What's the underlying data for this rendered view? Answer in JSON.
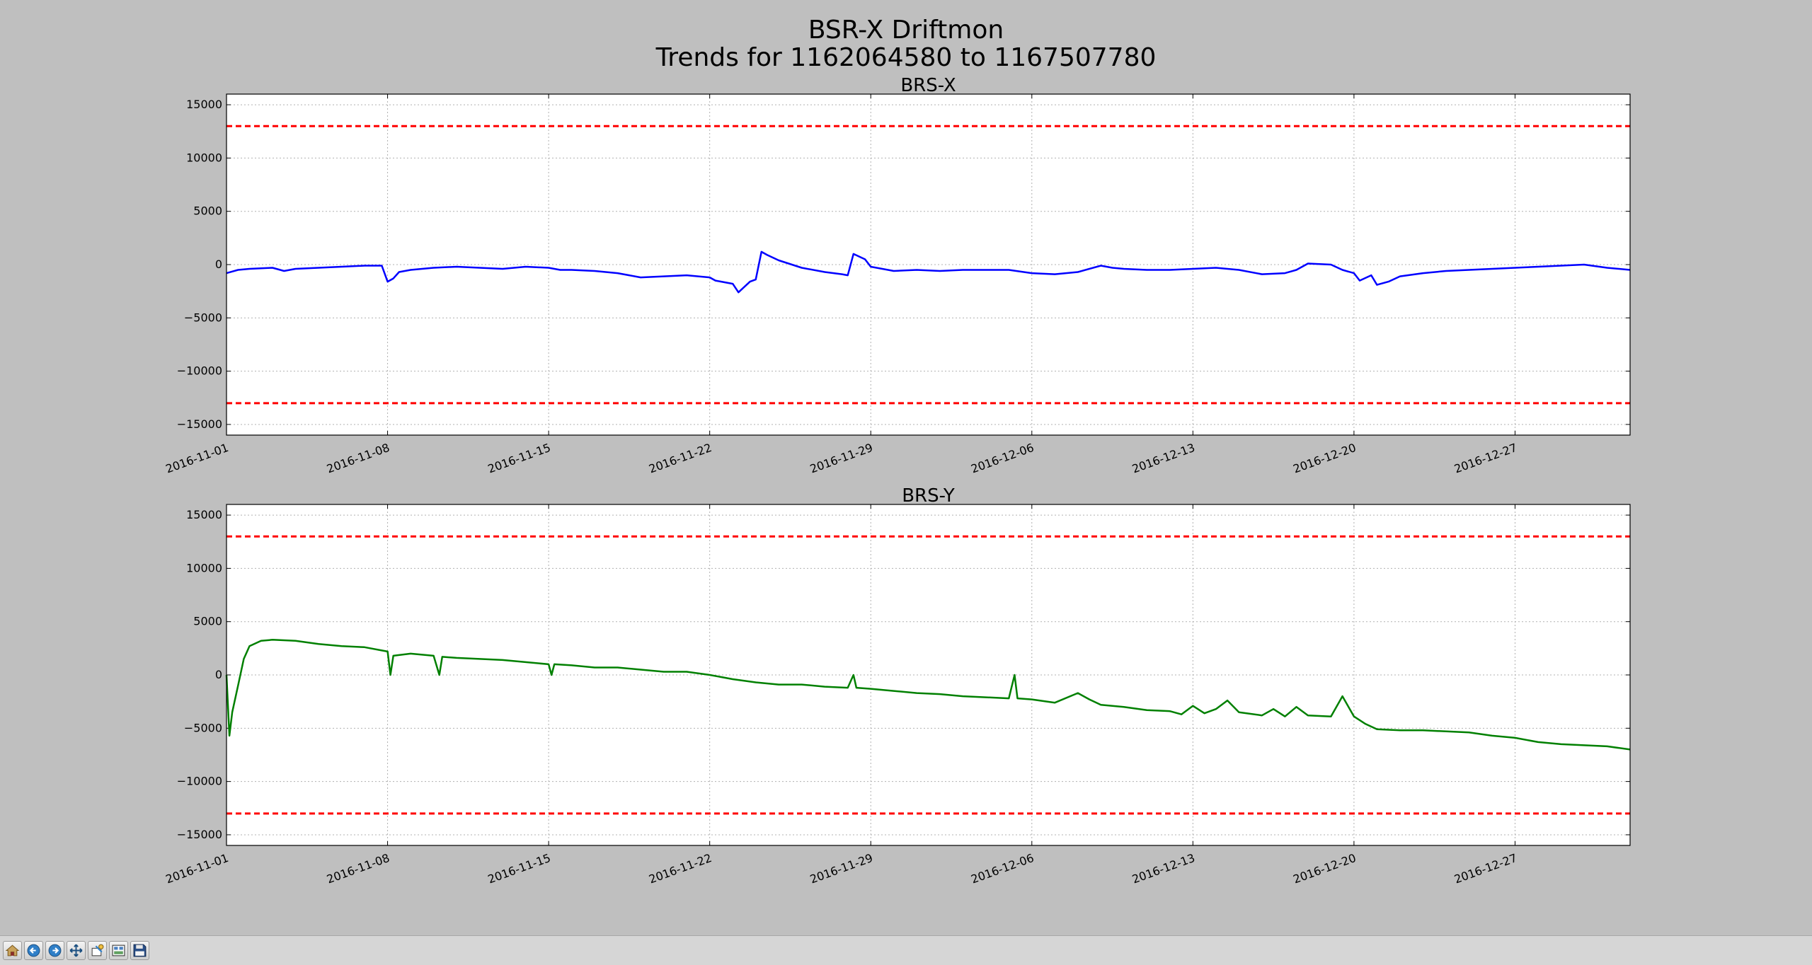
{
  "figure": {
    "title_line1": "BSR-X Driftmon",
    "title_line2": "Trends for 1162064580 to 1167507780"
  },
  "colors": {
    "background": "#bfbfbf",
    "threshold": "#ff0000",
    "brs_x": "#0000ff",
    "brs_y": "#008000",
    "grid": "#b0b0b0"
  },
  "toolbar": {
    "buttons": [
      {
        "name": "home-button",
        "icon": "home-icon"
      },
      {
        "name": "back-button",
        "icon": "arrow-left-icon"
      },
      {
        "name": "forward-button",
        "icon": "arrow-right-icon"
      },
      {
        "name": "pan-button",
        "icon": "move-icon"
      },
      {
        "name": "zoom-button",
        "icon": "zoom-icon"
      },
      {
        "name": "configure-subplots-button",
        "icon": "subplots-icon"
      },
      {
        "name": "save-button",
        "icon": "floppy-disk-icon"
      }
    ]
  },
  "chart_data": [
    {
      "type": "line",
      "title": "BRS-X",
      "xlabel": "",
      "ylabel": "",
      "x_range": [
        "2016-11-01",
        "2017-01-01"
      ],
      "ylim": [
        -16000,
        16000
      ],
      "x_ticks": [
        "2016-11-01",
        "2016-11-08",
        "2016-11-15",
        "2016-11-22",
        "2016-11-29",
        "2016-12-06",
        "2016-12-13",
        "2016-12-20",
        "2016-12-27"
      ],
      "y_ticks": [
        15000,
        10000,
        5000,
        0,
        -5000,
        -10000,
        -15000
      ],
      "y_tick_labels": [
        "15000",
        "10000",
        "5000",
        "0",
        "−5000",
        "−10000",
        "−15000"
      ],
      "grid": true,
      "thresholds": [
        13000,
        -13000
      ],
      "series": [
        {
          "color": "#0000ff",
          "points": [
            [
              "2016-11-01",
              -800
            ],
            [
              "2016-11-01T12:00",
              -500
            ],
            [
              "2016-11-02",
              -400
            ],
            [
              "2016-11-03",
              -300
            ],
            [
              "2016-11-03T12:00",
              -600
            ],
            [
              "2016-11-04",
              -400
            ],
            [
              "2016-11-05",
              -300
            ],
            [
              "2016-11-06",
              -200
            ],
            [
              "2016-11-07",
              -100
            ],
            [
              "2016-11-07T18:00",
              -100
            ],
            [
              "2016-11-08",
              -1600
            ],
            [
              "2016-11-08T06:00",
              -1300
            ],
            [
              "2016-11-08T12:00",
              -700
            ],
            [
              "2016-11-09",
              -500
            ],
            [
              "2016-11-10",
              -300
            ],
            [
              "2016-11-11",
              -200
            ],
            [
              "2016-11-12",
              -300
            ],
            [
              "2016-11-13",
              -400
            ],
            [
              "2016-11-14",
              -200
            ],
            [
              "2016-11-15",
              -300
            ],
            [
              "2016-11-15T12:00",
              -500
            ],
            [
              "2016-11-16",
              -500
            ],
            [
              "2016-11-17",
              -600
            ],
            [
              "2016-11-18",
              -800
            ],
            [
              "2016-11-19",
              -1200
            ],
            [
              "2016-11-20",
              -1100
            ],
            [
              "2016-11-21",
              -1000
            ],
            [
              "2016-11-22",
              -1200
            ],
            [
              "2016-11-22T06:00",
              -1500
            ],
            [
              "2016-11-23",
              -1800
            ],
            [
              "2016-11-23T06:00",
              -2600
            ],
            [
              "2016-11-23T18:00",
              -1600
            ],
            [
              "2016-11-24",
              -1400
            ],
            [
              "2016-11-24T06:00",
              1200
            ],
            [
              "2016-11-24T12:00",
              900
            ],
            [
              "2016-11-25",
              400
            ],
            [
              "2016-11-26",
              -300
            ],
            [
              "2016-11-27",
              -700
            ],
            [
              "2016-11-27T18:00",
              -900
            ],
            [
              "2016-11-28",
              -1000
            ],
            [
              "2016-11-28T06:00",
              1000
            ],
            [
              "2016-11-28T18:00",
              500
            ],
            [
              "2016-11-29",
              -200
            ],
            [
              "2016-11-30",
              -600
            ],
            [
              "2016-12-01",
              -500
            ],
            [
              "2016-12-02",
              -600
            ],
            [
              "2016-12-03",
              -500
            ],
            [
              "2016-12-04",
              -500
            ],
            [
              "2016-12-05",
              -500
            ],
            [
              "2016-12-06",
              -800
            ],
            [
              "2016-12-07",
              -900
            ],
            [
              "2016-12-08",
              -700
            ],
            [
              "2016-12-09",
              -100
            ],
            [
              "2016-12-09T12:00",
              -300
            ],
            [
              "2016-12-10",
              -400
            ],
            [
              "2016-12-11",
              -500
            ],
            [
              "2016-12-12",
              -500
            ],
            [
              "2016-12-13",
              -400
            ],
            [
              "2016-12-14",
              -300
            ],
            [
              "2016-12-15",
              -500
            ],
            [
              "2016-12-16",
              -900
            ],
            [
              "2016-12-17",
              -800
            ],
            [
              "2016-12-17T12:00",
              -500
            ],
            [
              "2016-12-18",
              100
            ],
            [
              "2016-12-19",
              0
            ],
            [
              "2016-12-19T12:00",
              -500
            ],
            [
              "2016-12-20",
              -800
            ],
            [
              "2016-12-20T06:00",
              -1500
            ],
            [
              "2016-12-20T18:00",
              -1000
            ],
            [
              "2016-12-21",
              -1900
            ],
            [
              "2016-12-21T12:00",
              -1600
            ],
            [
              "2016-12-22",
              -1100
            ],
            [
              "2016-12-23",
              -800
            ],
            [
              "2016-12-24",
              -600
            ],
            [
              "2016-12-25",
              -500
            ],
            [
              "2016-12-26",
              -400
            ],
            [
              "2016-12-27",
              -300
            ],
            [
              "2016-12-28",
              -200
            ],
            [
              "2016-12-29",
              -100
            ],
            [
              "2016-12-30",
              0
            ],
            [
              "2016-12-31",
              -300
            ],
            [
              "2017-01-01",
              -500
            ]
          ]
        }
      ]
    },
    {
      "type": "line",
      "title": "BRS-Y",
      "xlabel": "",
      "ylabel": "",
      "x_range": [
        "2016-11-01",
        "2017-01-01"
      ],
      "ylim": [
        -16000,
        16000
      ],
      "x_ticks": [
        "2016-11-01",
        "2016-11-08",
        "2016-11-15",
        "2016-11-22",
        "2016-11-29",
        "2016-12-06",
        "2016-12-13",
        "2016-12-20",
        "2016-12-27"
      ],
      "y_ticks": [
        15000,
        10000,
        5000,
        0,
        -5000,
        -10000,
        -15000
      ],
      "y_tick_labels": [
        "15000",
        "10000",
        "5000",
        "0",
        "−5000",
        "−10000",
        "−15000"
      ],
      "grid": true,
      "thresholds": [
        13000,
        -13000
      ],
      "series": [
        {
          "color": "#008000",
          "points": [
            [
              "2016-11-01",
              0
            ],
            [
              "2016-11-01T03:00",
              -5700
            ],
            [
              "2016-11-01T06:00",
              -3500
            ],
            [
              "2016-11-01T12:00",
              -1000
            ],
            [
              "2016-11-01T18:00",
              1500
            ],
            [
              "2016-11-02",
              2700
            ],
            [
              "2016-11-02T12:00",
              3200
            ],
            [
              "2016-11-03",
              3300
            ],
            [
              "2016-11-04",
              3200
            ],
            [
              "2016-11-05",
              2900
            ],
            [
              "2016-11-06",
              2700
            ],
            [
              "2016-11-07",
              2600
            ],
            [
              "2016-11-07T18:00",
              2300
            ],
            [
              "2016-11-08",
              2200
            ],
            [
              "2016-11-08T03:00",
              0
            ],
            [
              "2016-11-08T06:00",
              1800
            ],
            [
              "2016-11-09",
              2000
            ],
            [
              "2016-11-10",
              1800
            ],
            [
              "2016-11-10T06:00",
              0
            ],
            [
              "2016-11-10T09:00",
              1700
            ],
            [
              "2016-11-11",
              1600
            ],
            [
              "2016-11-12",
              1500
            ],
            [
              "2016-11-13",
              1400
            ],
            [
              "2016-11-14",
              1200
            ],
            [
              "2016-11-15",
              1000
            ],
            [
              "2016-11-15T03:00",
              0
            ],
            [
              "2016-11-15T06:00",
              1000
            ],
            [
              "2016-11-16",
              900
            ],
            [
              "2016-11-17",
              700
            ],
            [
              "2016-11-18",
              700
            ],
            [
              "2016-11-19",
              500
            ],
            [
              "2016-11-20",
              300
            ],
            [
              "2016-11-21",
              300
            ],
            [
              "2016-11-22",
              0
            ],
            [
              "2016-11-23",
              -400
            ],
            [
              "2016-11-24",
              -700
            ],
            [
              "2016-11-25",
              -900
            ],
            [
              "2016-11-26",
              -900
            ],
            [
              "2016-11-27",
              -1100
            ],
            [
              "2016-11-28",
              -1200
            ],
            [
              "2016-11-28T06:00",
              0
            ],
            [
              "2016-11-28T09:00",
              -1200
            ],
            [
              "2016-11-29",
              -1300
            ],
            [
              "2016-11-30",
              -1500
            ],
            [
              "2016-12-01",
              -1700
            ],
            [
              "2016-12-02",
              -1800
            ],
            [
              "2016-12-03",
              -2000
            ],
            [
              "2016-12-04",
              -2100
            ],
            [
              "2016-12-05",
              -2200
            ],
            [
              "2016-12-05T06:00",
              0
            ],
            [
              "2016-12-05T09:00",
              -2200
            ],
            [
              "2016-12-06",
              -2300
            ],
            [
              "2016-12-07",
              -2600
            ],
            [
              "2016-12-08",
              -1700
            ],
            [
              "2016-12-08T12:00",
              -2300
            ],
            [
              "2016-12-09",
              -2800
            ],
            [
              "2016-12-10",
              -3000
            ],
            [
              "2016-12-11",
              -3300
            ],
            [
              "2016-12-12",
              -3400
            ],
            [
              "2016-12-12T12:00",
              -3700
            ],
            [
              "2016-12-13",
              -2900
            ],
            [
              "2016-12-13T12:00",
              -3600
            ],
            [
              "2016-12-14",
              -3200
            ],
            [
              "2016-12-14T12:00",
              -2400
            ],
            [
              "2016-12-15",
              -3500
            ],
            [
              "2016-12-16",
              -3800
            ],
            [
              "2016-12-16T12:00",
              -3200
            ],
            [
              "2016-12-17",
              -3900
            ],
            [
              "2016-12-17T12:00",
              -3000
            ],
            [
              "2016-12-18",
              -3800
            ],
            [
              "2016-12-19",
              -3900
            ],
            [
              "2016-12-19T12:00",
              -2000
            ],
            [
              "2016-12-20",
              -3900
            ],
            [
              "2016-12-20T12:00",
              -4600
            ],
            [
              "2016-12-21",
              -5100
            ],
            [
              "2016-12-22",
              -5200
            ],
            [
              "2016-12-23",
              -5200
            ],
            [
              "2016-12-24",
              -5300
            ],
            [
              "2016-12-25",
              -5400
            ],
            [
              "2016-12-26",
              -5700
            ],
            [
              "2016-12-27",
              -5900
            ],
            [
              "2016-12-28",
              -6300
            ],
            [
              "2016-12-29",
              -6500
            ],
            [
              "2016-12-30",
              -6600
            ],
            [
              "2016-12-31",
              -6700
            ],
            [
              "2017-01-01",
              -7000
            ]
          ]
        }
      ]
    }
  ]
}
